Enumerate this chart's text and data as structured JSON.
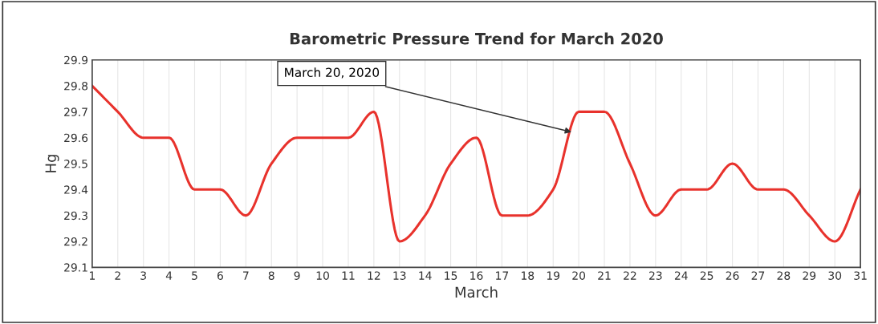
{
  "chart_data": {
    "type": "line",
    "title": "Barometric Pressure Trend for March 2020",
    "xlabel": "March",
    "ylabel": "Hg",
    "x": [
      1,
      2,
      3,
      4,
      5,
      6,
      7,
      8,
      9,
      10,
      11,
      12,
      13,
      14,
      15,
      16,
      17,
      18,
      19,
      20,
      21,
      22,
      23,
      24,
      25,
      26,
      27,
      28,
      29,
      30,
      31
    ],
    "series": [
      {
        "color": "#e8322c",
        "values": [
          29.8,
          29.7,
          29.6,
          29.6,
          29.4,
          29.4,
          29.3,
          29.5,
          29.6,
          29.6,
          29.6,
          29.7,
          29.2,
          29.3,
          29.5,
          29.6,
          29.3,
          29.3,
          29.4,
          29.7,
          29.7,
          29.5,
          29.3,
          29.4,
          29.4,
          29.5,
          29.4,
          29.4,
          29.3,
          29.2,
          29.4
        ]
      }
    ],
    "xlim": [
      1,
      31
    ],
    "xticks": [
      1,
      2,
      3,
      4,
      5,
      6,
      7,
      8,
      9,
      10,
      11,
      12,
      13,
      14,
      15,
      16,
      17,
      18,
      19,
      20,
      21,
      22,
      23,
      24,
      25,
      26,
      27,
      28,
      29,
      30,
      31
    ],
    "ylim": [
      29.1,
      29.9
    ],
    "yticks": [
      29.1,
      29.2,
      29.3,
      29.4,
      29.5,
      29.6,
      29.7,
      29.8,
      29.9
    ],
    "grid": "x",
    "marker": "none",
    "line_style": "solid",
    "annotations": [
      {
        "text": "March 20, 2020",
        "x": 19.8,
        "y": 29.62
      }
    ]
  }
}
